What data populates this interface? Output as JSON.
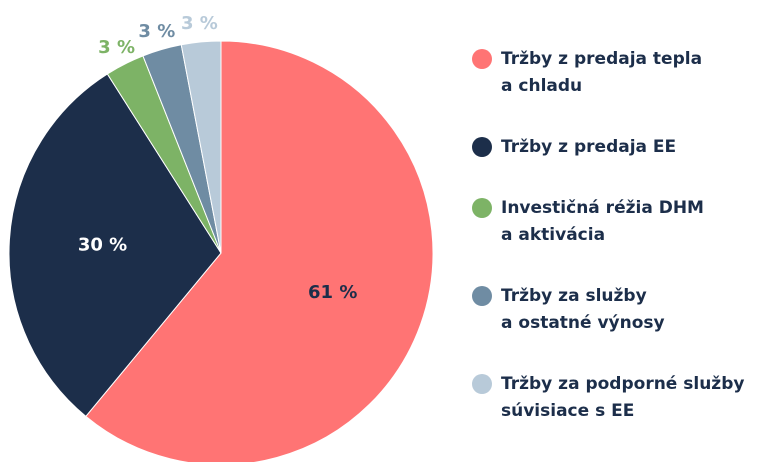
{
  "chart_data": {
    "type": "pie",
    "series": [
      {
        "name": "Tržby z predaja tepla\na chladu",
        "color": "#ff7474",
        "values": [
          61
        ],
        "value_labels": [
          "61 %"
        ]
      },
      {
        "name": "Tržby z predaja EE",
        "color": "#1c2e4a",
        "values": [
          30
        ],
        "value_labels": [
          "30 %"
        ]
      },
      {
        "name": "Investičná réžia DHM\na aktivácia",
        "color": "#7db366",
        "values": [
          3
        ],
        "value_labels": [
          "3 %"
        ]
      },
      {
        "name": "Tržby za služby\na ostatné výnosy",
        "color": "#6f8ca3",
        "values": [
          3
        ],
        "value_labels": [
          "3 %"
        ]
      },
      {
        "name": "Tržby za podporné služby\nsúvisiace s EE",
        "color": "#b8cad9",
        "values": [
          3
        ],
        "value_labels": [
          "3 %"
        ]
      }
    ]
  }
}
